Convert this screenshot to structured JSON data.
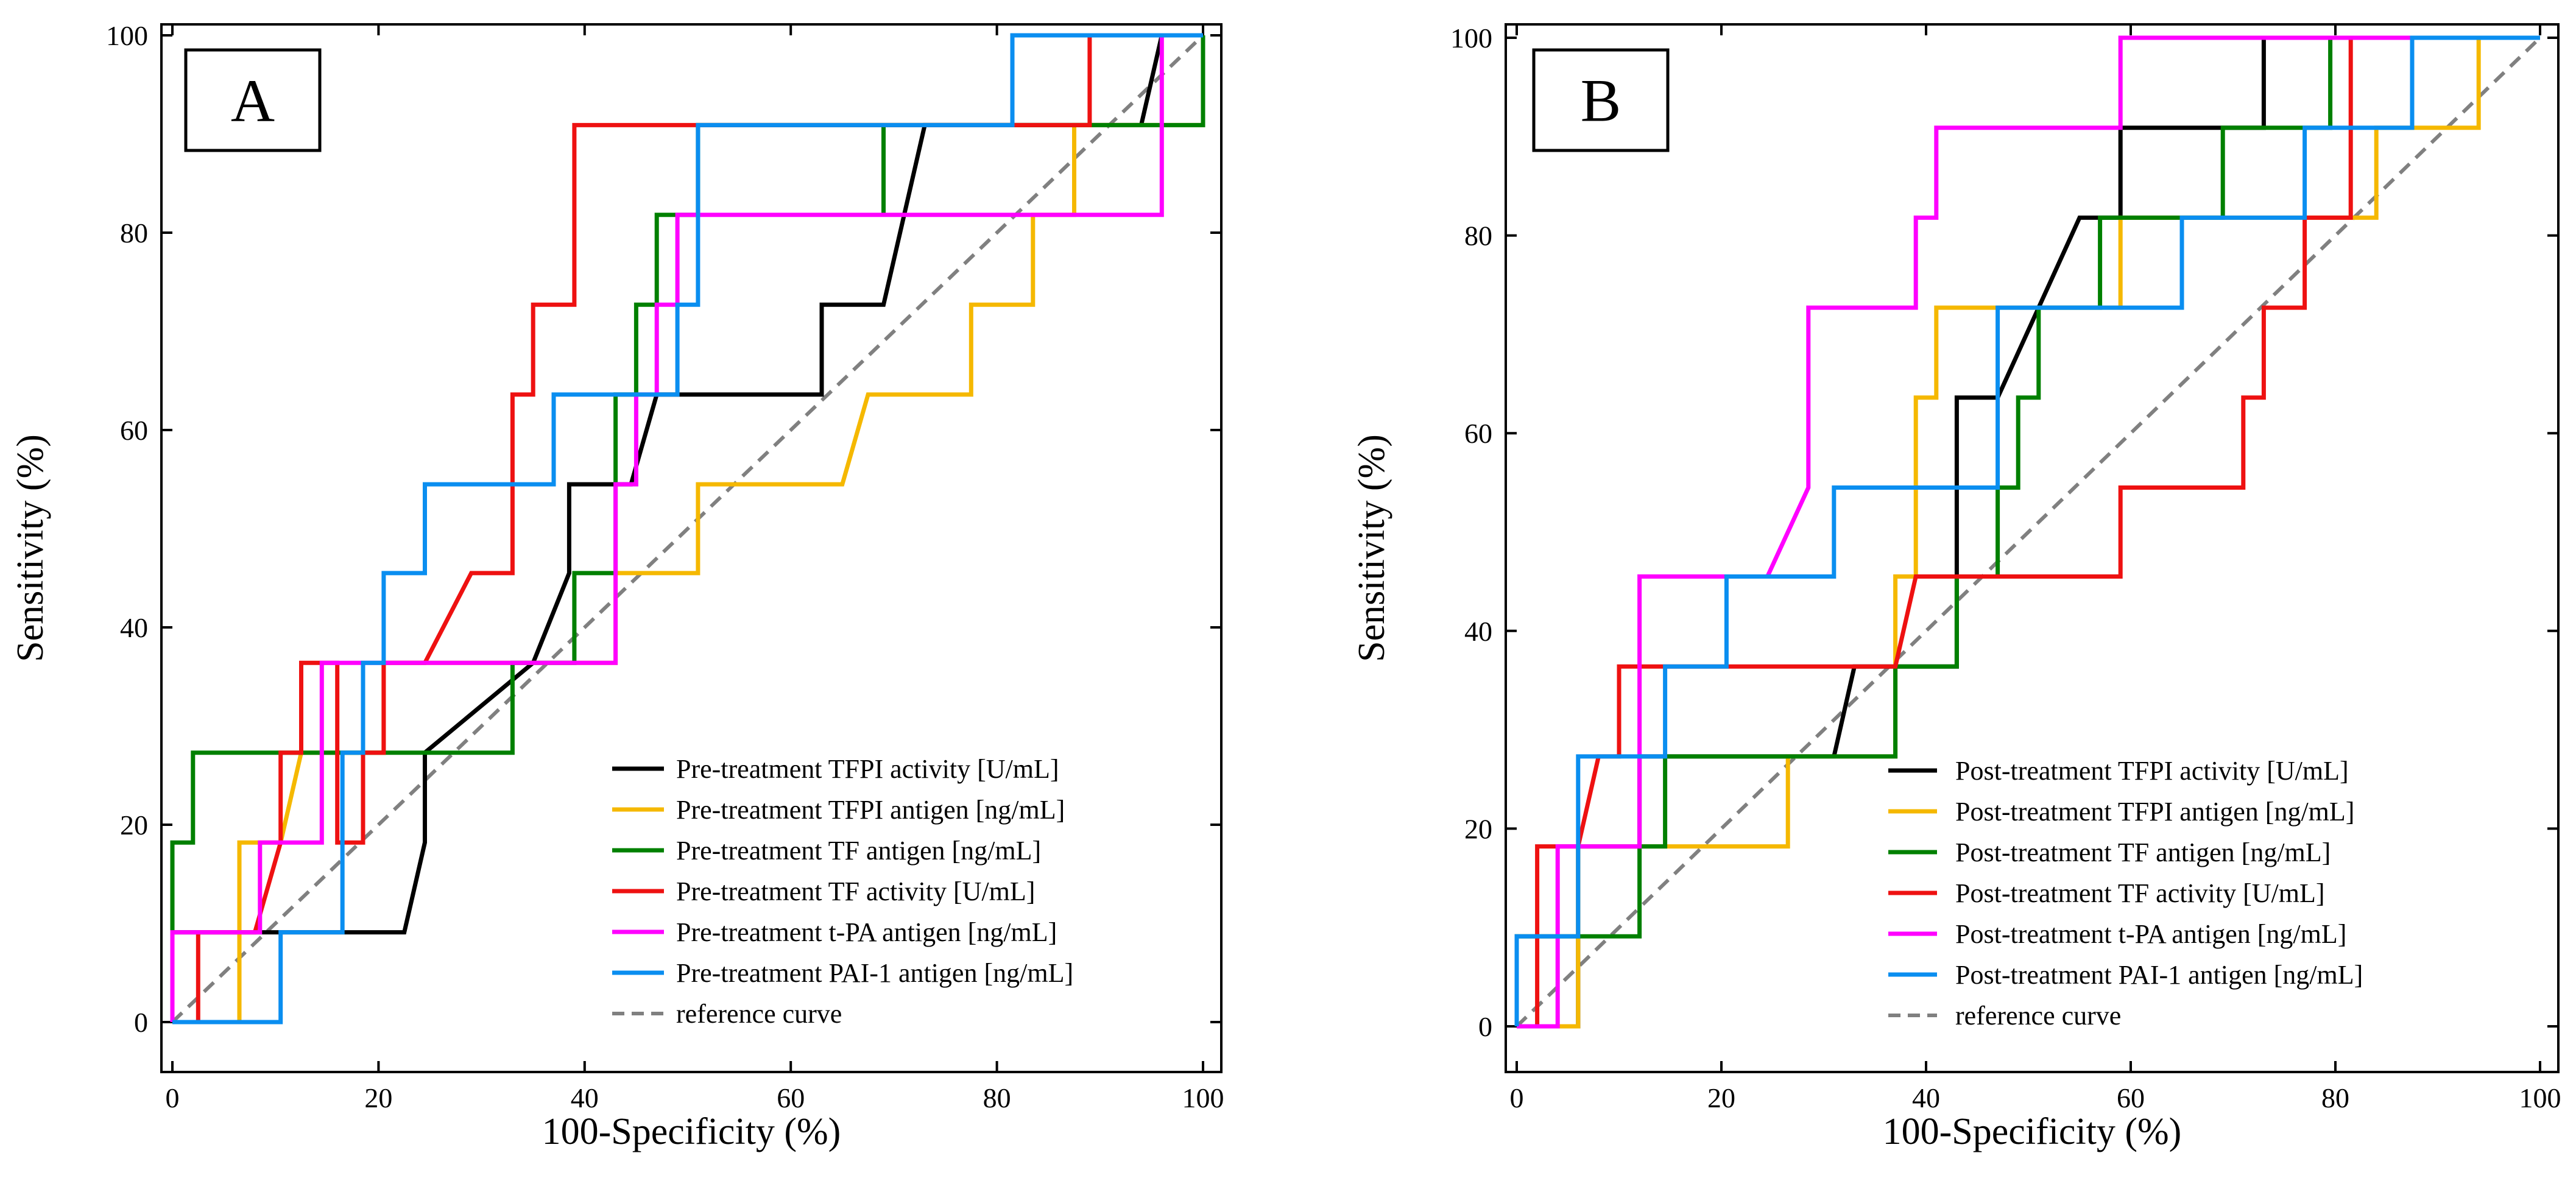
{
  "chart_data": [
    {
      "type": "line",
      "panel_label": "A",
      "xlabel": "100-Specificity (%)",
      "ylabel": "Sensitivity (%)",
      "xlim": [
        0,
        100
      ],
      "ylim": [
        0,
        100
      ],
      "xticks": [
        0,
        20,
        40,
        60,
        80,
        100
      ],
      "yticks": [
        0,
        20,
        40,
        60,
        80,
        100
      ],
      "legend_position": "bottom-right",
      "series": [
        {
          "name": "Pre-treatment TFPI activity [U/mL]",
          "color": "#000000",
          "dashed": false,
          "points": [
            [
              0,
              0
            ],
            [
              0,
              9.1
            ],
            [
              22.5,
              9.1
            ],
            [
              24.5,
              18.2
            ],
            [
              24.5,
              27.3
            ],
            [
              35,
              36.4
            ],
            [
              38.5,
              45.5
            ],
            [
              38.5,
              54.5
            ],
            [
              44.5,
              54.5
            ],
            [
              47,
              63.6
            ],
            [
              63,
              63.6
            ],
            [
              63,
              72.7
            ],
            [
              69,
              72.7
            ],
            [
              73,
              90.9
            ],
            [
              94,
              90.9
            ],
            [
              96,
              100
            ],
            [
              100,
              100
            ]
          ]
        },
        {
          "name": "Pre-treatment TFPI antigen [ng/mL]",
          "color": "#f5b800",
          "dashed": false,
          "points": [
            [
              0,
              0
            ],
            [
              6.5,
              0
            ],
            [
              6.5,
              18.2
            ],
            [
              10.5,
              18.2
            ],
            [
              12.5,
              27.3
            ],
            [
              20.5,
              27.3
            ],
            [
              20.5,
              36.4
            ],
            [
              43,
              36.4
            ],
            [
              43,
              45.5
            ],
            [
              51,
              45.5
            ],
            [
              51,
              54.5
            ],
            [
              65,
              54.5
            ],
            [
              67.5,
              63.6
            ],
            [
              77.5,
              63.6
            ],
            [
              77.5,
              72.7
            ],
            [
              83.5,
              72.7
            ],
            [
              83.5,
              81.8
            ],
            [
              87.5,
              81.8
            ],
            [
              87.5,
              90.9
            ],
            [
              100,
              90.9
            ],
            [
              100,
              100
            ]
          ]
        },
        {
          "name": "Pre-treatment TF antigen [ng/mL]",
          "color": "#008000",
          "dashed": false,
          "points": [
            [
              0,
              0
            ],
            [
              0,
              18.2
            ],
            [
              2,
              18.2
            ],
            [
              2,
              27.3
            ],
            [
              33,
              27.3
            ],
            [
              33,
              36.4
            ],
            [
              39,
              36.4
            ],
            [
              39,
              45.5
            ],
            [
              43,
              45.5
            ],
            [
              43,
              63.6
            ],
            [
              45,
              63.6
            ],
            [
              45,
              72.7
            ],
            [
              47,
              72.7
            ],
            [
              47,
              81.8
            ],
            [
              51,
              81.8
            ],
            [
              51,
              90.9
            ],
            [
              69,
              90.9
            ],
            [
              69,
              81.8
            ],
            [
              69,
              90.9
            ],
            [
              100,
              90.9
            ],
            [
              100,
              100
            ]
          ]
        },
        {
          "name": "Pre-treatment TF activity [U/mL]",
          "color": "#ee1111",
          "dashed": false,
          "points": [
            [
              0,
              0
            ],
            [
              2.5,
              0
            ],
            [
              2.5,
              9.1
            ],
            [
              8,
              9.1
            ],
            [
              10.5,
              18.2
            ],
            [
              10.5,
              27.3
            ],
            [
              12.5,
              27.3
            ],
            [
              12.5,
              36.4
            ],
            [
              16,
              36.4
            ],
            [
              16,
              18.2
            ],
            [
              18.5,
              18.2
            ],
            [
              18.5,
              27.3
            ],
            [
              20.5,
              27.3
            ],
            [
              20.5,
              36.4
            ],
            [
              24.5,
              36.4
            ],
            [
              29,
              45.5
            ],
            [
              33,
              45.5
            ],
            [
              33,
              63.6
            ],
            [
              35,
              63.6
            ],
            [
              35,
              72.7
            ],
            [
              39,
              72.7
            ],
            [
              39,
              90.9
            ],
            [
              89,
              90.9
            ],
            [
              89,
              100
            ],
            [
              100,
              100
            ]
          ]
        },
        {
          "name": "Pre-treatment t-PA antigen [ng/mL]",
          "color": "#ff00ff",
          "dashed": false,
          "points": [
            [
              0,
              0
            ],
            [
              0,
              9.1
            ],
            [
              8.5,
              9.1
            ],
            [
              8.5,
              18.2
            ],
            [
              14.5,
              18.2
            ],
            [
              14.5,
              36.4
            ],
            [
              43,
              36.4
            ],
            [
              43,
              54.5
            ],
            [
              45,
              54.5
            ],
            [
              45,
              63.6
            ],
            [
              47,
              63.6
            ],
            [
              47,
              72.7
            ],
            [
              49,
              72.7
            ],
            [
              49,
              81.8
            ],
            [
              96,
              81.8
            ],
            [
              96,
              100
            ],
            [
              100,
              100
            ]
          ]
        },
        {
          "name": "Pre-treatment PAI-1 antigen [ng/mL]",
          "color": "#0a8ef0",
          "dashed": false,
          "points": [
            [
              0,
              0
            ],
            [
              10.5,
              0
            ],
            [
              10.5,
              9.1
            ],
            [
              16.5,
              9.1
            ],
            [
              16.5,
              27.3
            ],
            [
              18.5,
              27.3
            ],
            [
              18.5,
              36.4
            ],
            [
              20.5,
              36.4
            ],
            [
              20.5,
              45.5
            ],
            [
              24.5,
              45.5
            ],
            [
              24.5,
              54.5
            ],
            [
              37,
              54.5
            ],
            [
              37,
              63.6
            ],
            [
              49,
              63.6
            ],
            [
              49,
              72.7
            ],
            [
              51,
              72.7
            ],
            [
              51,
              90.9
            ],
            [
              81.5,
              90.9
            ],
            [
              81.5,
              100
            ],
            [
              100,
              100
            ]
          ]
        },
        {
          "name": "reference curve",
          "color": "#808080",
          "dashed": true,
          "points": [
            [
              0,
              0
            ],
            [
              100,
              100
            ]
          ]
        }
      ]
    },
    {
      "type": "line",
      "panel_label": "B",
      "xlabel": "100-Specificity (%)",
      "ylabel": "Sensitivity (%)",
      "xlim": [
        0,
        100
      ],
      "ylim": [
        0,
        100
      ],
      "xticks": [
        0,
        20,
        40,
        60,
        80,
        100
      ],
      "yticks": [
        0,
        20,
        40,
        60,
        80,
        100
      ],
      "legend_position": "bottom-right",
      "series": [
        {
          "name": "Post-treatment TFPI activity [U/mL]",
          "color": "#000000",
          "dashed": false,
          "points": [
            [
              0,
              0
            ],
            [
              6,
              0
            ],
            [
              6,
              9.1
            ],
            [
              6,
              18.2
            ],
            [
              12,
              18.2
            ],
            [
              12,
              27.3
            ],
            [
              31,
              27.3
            ],
            [
              33,
              36.4
            ],
            [
              43,
              36.4
            ],
            [
              43,
              63.6
            ],
            [
              47,
              63.6
            ],
            [
              51,
              72.7
            ],
            [
              55,
              81.8
            ],
            [
              59,
              81.8
            ],
            [
              59,
              90.9
            ],
            [
              73,
              90.9
            ],
            [
              73,
              100
            ],
            [
              100,
              100
            ]
          ]
        },
        {
          "name": "Post-treatment TFPI antigen [ng/mL]",
          "color": "#f5b800",
          "dashed": false,
          "points": [
            [
              0,
              0
            ],
            [
              6,
              0
            ],
            [
              6,
              18.2
            ],
            [
              26.5,
              18.2
            ],
            [
              26.5,
              27.3
            ],
            [
              37,
              27.3
            ],
            [
              37,
              45.5
            ],
            [
              39,
              45.5
            ],
            [
              39,
              63.6
            ],
            [
              41,
              63.6
            ],
            [
              41,
              72.7
            ],
            [
              59,
              72.7
            ],
            [
              59,
              81.8
            ],
            [
              84,
              81.8
            ],
            [
              84,
              90.9
            ],
            [
              94,
              90.9
            ],
            [
              94,
              100
            ],
            [
              100,
              100
            ]
          ]
        },
        {
          "name": "Post-treatment TF antigen [ng/mL]",
          "color": "#008000",
          "dashed": false,
          "points": [
            [
              0,
              0
            ],
            [
              0,
              9.1
            ],
            [
              12,
              9.1
            ],
            [
              12,
              18.2
            ],
            [
              14.5,
              18.2
            ],
            [
              14.5,
              27.3
            ],
            [
              37,
              27.3
            ],
            [
              37,
              36.4
            ],
            [
              43,
              36.4
            ],
            [
              43,
              45.5
            ],
            [
              47,
              45.5
            ],
            [
              47,
              54.5
            ],
            [
              49,
              54.5
            ],
            [
              49,
              63.6
            ],
            [
              51,
              63.6
            ],
            [
              51,
              72.7
            ],
            [
              57,
              72.7
            ],
            [
              57,
              81.8
            ],
            [
              69,
              81.8
            ],
            [
              69,
              90.9
            ],
            [
              79.5,
              90.9
            ],
            [
              79.5,
              100
            ],
            [
              100,
              100
            ]
          ]
        },
        {
          "name": "Post-treatment TF activity [U/mL]",
          "color": "#ee1111",
          "dashed": false,
          "points": [
            [
              0,
              0
            ],
            [
              2,
              0
            ],
            [
              2,
              18.2
            ],
            [
              6,
              18.2
            ],
            [
              8,
              27.3
            ],
            [
              10,
              27.3
            ],
            [
              10,
              36.4
            ],
            [
              37,
              36.4
            ],
            [
              39,
              45.5
            ],
            [
              59,
              45.5
            ],
            [
              59,
              54.5
            ],
            [
              71,
              54.5
            ],
            [
              71,
              63.6
            ],
            [
              73,
              63.6
            ],
            [
              73,
              72.7
            ],
            [
              77,
              72.7
            ],
            [
              77,
              81.8
            ],
            [
              81.5,
              81.8
            ],
            [
              81.5,
              100
            ],
            [
              100,
              100
            ]
          ]
        },
        {
          "name": "Post-treatment t-PA antigen [ng/mL]",
          "color": "#ff00ff",
          "dashed": false,
          "points": [
            [
              0,
              0
            ],
            [
              4,
              0
            ],
            [
              4,
              18.2
            ],
            [
              12,
              18.2
            ],
            [
              12,
              45.5
            ],
            [
              24.5,
              45.5
            ],
            [
              28.5,
              54.5
            ],
            [
              28.5,
              72.7
            ],
            [
              39,
              72.7
            ],
            [
              39,
              81.8
            ],
            [
              41,
              81.8
            ],
            [
              41,
              90.9
            ],
            [
              59,
              90.9
            ],
            [
              59,
              100
            ],
            [
              100,
              100
            ]
          ]
        },
        {
          "name": "Post-treatment PAI-1 antigen [ng/mL]",
          "color": "#0a8ef0",
          "dashed": false,
          "points": [
            [
              0,
              0
            ],
            [
              0,
              9.1
            ],
            [
              6,
              9.1
            ],
            [
              6,
              27.3
            ],
            [
              14.5,
              27.3
            ],
            [
              14.5,
              36.4
            ],
            [
              20.5,
              36.4
            ],
            [
              20.5,
              45.5
            ],
            [
              31,
              45.5
            ],
            [
              31,
              54.5
            ],
            [
              47,
              54.5
            ],
            [
              47,
              72.7
            ],
            [
              65,
              72.7
            ],
            [
              65,
              81.8
            ],
            [
              77,
              81.8
            ],
            [
              77,
              90.9
            ],
            [
              87.5,
              90.9
            ],
            [
              87.5,
              100
            ],
            [
              100,
              100
            ]
          ]
        },
        {
          "name": "reference curve",
          "color": "#808080",
          "dashed": true,
          "points": [
            [
              0,
              0
            ],
            [
              100,
              100
            ]
          ]
        }
      ]
    }
  ]
}
